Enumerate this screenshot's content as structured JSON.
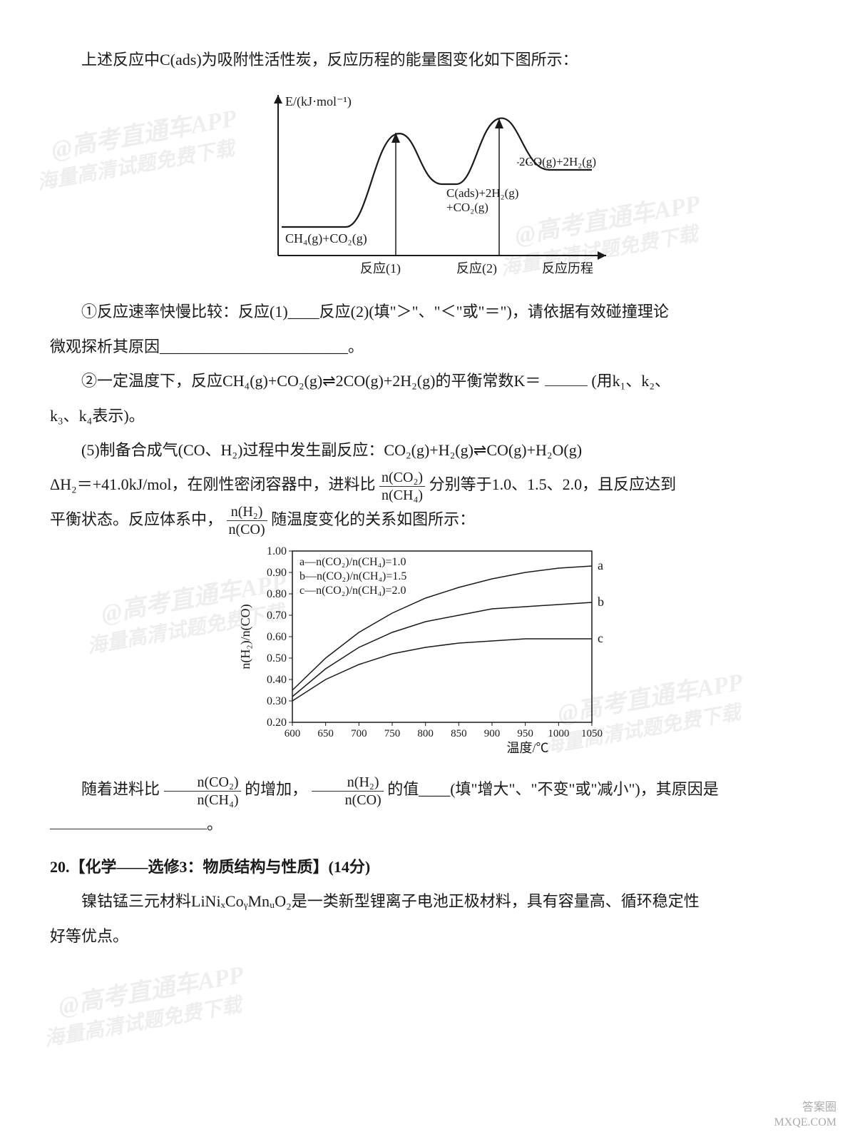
{
  "intro_text": "上述反应中C(ads)为吸附性活性炭，反应历程的能量图变化如下图所示：",
  "energy_diagram": {
    "y_axis_label": "E/(kJ·mol⁻¹)",
    "x_axis_label": "反应历程",
    "x_markers": [
      "反应(1)",
      "反应(2)"
    ],
    "reactant_label": "CH₄(g)+CO₂(g)",
    "intermediate_label": "C(ads)+2H₂(g)\n+CO₂(g)",
    "product_label": "2CO(g)+2H₂(g)",
    "line_color": "#1a1a1a",
    "axis_color": "#1a1a1a",
    "bg_color": "#ffffff",
    "line_width": 2,
    "reactant_y": 200,
    "peak1_y": 70,
    "valley_y": 140,
    "peak2_y": 50,
    "product_y": 120
  },
  "q1_text": "①反应速率快慢比较：反应(1)____反应(2)(填\"＞\"、\"＜\"或\"＝\")，请依据有效碰撞理论",
  "q1_cont": "微观探析其原因________________________。",
  "q2_text_a": "②一定温度下，反应CH₄(g)+CO₂(g)⇌2CO(g)+2H₂(g)的平衡常数K＝",
  "q2_text_b": "(用k₁、k₂、",
  "q2_cont": "k₃、k₄表示)。",
  "q5_intro": "(5)制备合成气(CO、H₂)过程中发生副反应：CO₂(g)+H₂(g)⇌CO(g)+H₂O(g)",
  "q5_line2_a": "ΔH₂＝+41.0kJ/mol，在刚性密闭容器中，进料比",
  "q5_frac1_num": "n(CO₂)",
  "q5_frac1_den": "n(CH₄)",
  "q5_line2_b": "分别等于1.0、1.5、2.0，且反应达到",
  "q5_line3_a": "平衡状态。反应体系中，",
  "q5_frac2_num": "n(H₂)",
  "q5_frac2_den": "n(CO)",
  "q5_line3_b": "随温度变化的关系如图所示：",
  "ratio_chart": {
    "y_label": "n(H₂)/n(CO)",
    "x_label": "温度/℃",
    "y_ticks": [
      0.2,
      0.3,
      0.4,
      0.5,
      0.6,
      0.7,
      0.8,
      0.9,
      1.0
    ],
    "x_ticks": [
      600,
      650,
      700,
      750,
      800,
      850,
      900,
      950,
      1000,
      1050
    ],
    "legend": [
      "a—n(CO₂)/n(CH₄)=1.0",
      "b—n(CO₂)/n(CH₄)=1.5",
      "c—n(CO₂)/n(CH₄)=2.0"
    ],
    "series_labels": [
      "a",
      "b",
      "c"
    ],
    "series": {
      "a": {
        "color": "#1a1a1a",
        "x": [
          600,
          650,
          700,
          750,
          800,
          850,
          900,
          950,
          1000,
          1050
        ],
        "y": [
          0.35,
          0.5,
          0.62,
          0.71,
          0.78,
          0.83,
          0.87,
          0.9,
          0.92,
          0.93
        ]
      },
      "b": {
        "color": "#1a1a1a",
        "x": [
          600,
          650,
          700,
          750,
          800,
          850,
          900,
          950,
          1000,
          1050
        ],
        "y": [
          0.32,
          0.45,
          0.55,
          0.62,
          0.67,
          0.7,
          0.73,
          0.74,
          0.75,
          0.76
        ]
      },
      "c": {
        "color": "#1a1a1a",
        "x": [
          600,
          650,
          700,
          750,
          800,
          850,
          900,
          950,
          1000,
          1050
        ],
        "y": [
          0.3,
          0.4,
          0.47,
          0.52,
          0.55,
          0.57,
          0.58,
          0.59,
          0.59,
          0.59
        ]
      }
    },
    "axis_color": "#1a1a1a",
    "bg_color": "#ffffff",
    "line_width": 1.5,
    "tick_font_size": 16
  },
  "q5_conclusion_a": "随着进料比",
  "q5_conclusion_b": "的增加，",
  "q5_conclusion_c": "的值____(填\"增大\"、\"不变\"或\"减小\")，其原因是",
  "q20_title": "20.【化学——选修3：物质结构与性质】(14分)",
  "q20_body": "镍钴锰三元材料LiNiₓCoᵧMnᵤO₂是一类新型锂离子电池正极材料，具有容量高、循环稳定性",
  "q20_body2": "好等优点。",
  "watermarks": {
    "text1": "@高考直通车APP",
    "text2": "海量高清试题免费下载"
  },
  "footer": {
    "line1": "答案圈",
    "line2": "MXQE.COM"
  }
}
